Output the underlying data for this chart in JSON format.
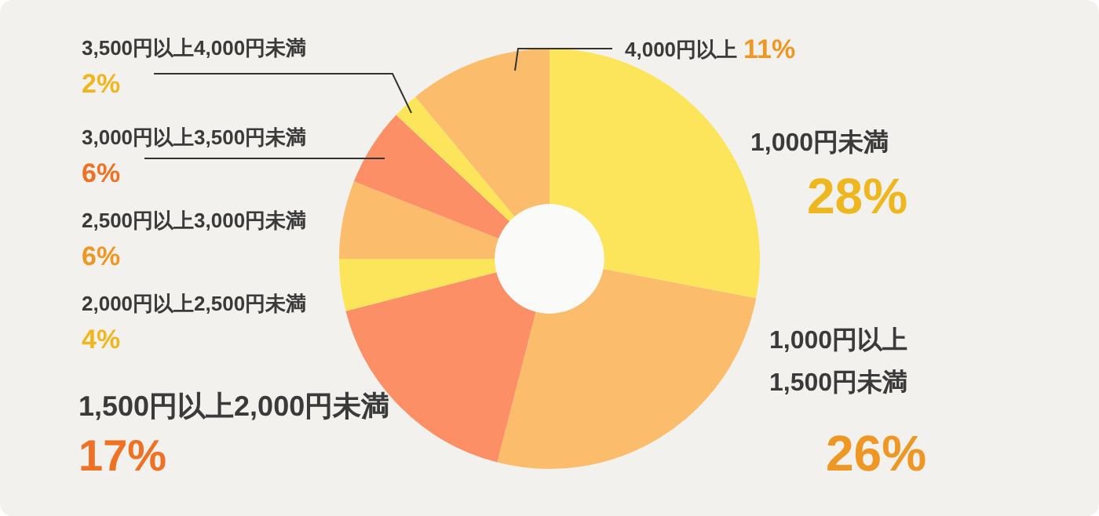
{
  "chart_data": {
    "type": "donut",
    "categories": [
      "1,000円未満",
      "1,000円以上1,500円未満",
      "1,500円以上2,000円未満",
      "2,000円以上2,500円未満",
      "2,500円以上3,000円未満",
      "3,000円以上3,500円未満",
      "3,500円以上4,000円未満",
      "4,000円以上"
    ],
    "values": [
      28,
      26,
      17,
      4,
      6,
      6,
      2,
      11
    ],
    "value_labels": [
      "28%",
      "26%",
      "17%",
      "4%",
      "6%",
      "6%",
      "2%",
      "11%"
    ],
    "colors": [
      "#fce55a",
      "#fbbd6b",
      "#fc8f66",
      "#fce55a",
      "#fbbd6b",
      "#fc8f66",
      "#fce55a",
      "#fbbd6b"
    ],
    "legend": false
  }
}
